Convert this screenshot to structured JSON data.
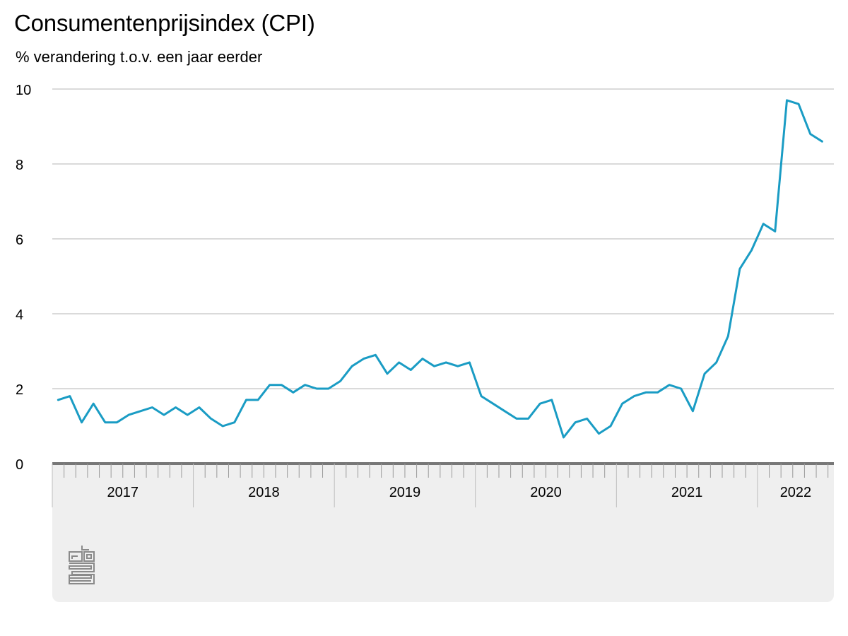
{
  "chart_data": {
    "type": "line",
    "title": "Consumentenprijsindex (CPI)",
    "subtitle": "% verandering t.o.v. een jaar eerder",
    "ylim": [
      0,
      10
    ],
    "yticks": [
      "0",
      "2",
      "4",
      "6",
      "8",
      "10"
    ],
    "x_start": "2017-01",
    "x_end": "2022-06",
    "year_labels": [
      "2017",
      "2018",
      "2019",
      "2020",
      "2021",
      "2022"
    ],
    "grid": true,
    "colors": {
      "line": "#1a9cc4",
      "grid": "#b4b4b4",
      "panel": "#efefef",
      "axis": "#777777",
      "logo": "#8a8a8a"
    },
    "series": [
      {
        "values": [
          1.7,
          1.8,
          1.1,
          1.6,
          1.1,
          1.1,
          1.3,
          1.4,
          1.5,
          1.3,
          1.5,
          1.3,
          1.5,
          1.2,
          1.0,
          1.1,
          1.7,
          1.7,
          2.1,
          2.1,
          1.9,
          2.1,
          2.0,
          2.0,
          2.2,
          2.6,
          2.8,
          2.9,
          2.4,
          2.7,
          2.5,
          2.8,
          2.6,
          2.7,
          2.6,
          2.7,
          1.8,
          1.6,
          1.4,
          1.2,
          1.2,
          1.6,
          1.7,
          0.7,
          1.1,
          1.2,
          0.8,
          1.0,
          1.6,
          1.8,
          1.9,
          1.9,
          2.1,
          2.0,
          1.4,
          2.4,
          2.7,
          3.4,
          5.2,
          5.7,
          6.4,
          6.2,
          9.7,
          9.6,
          8.8,
          8.6
        ]
      }
    ]
  },
  "logo": "cbs-logo"
}
